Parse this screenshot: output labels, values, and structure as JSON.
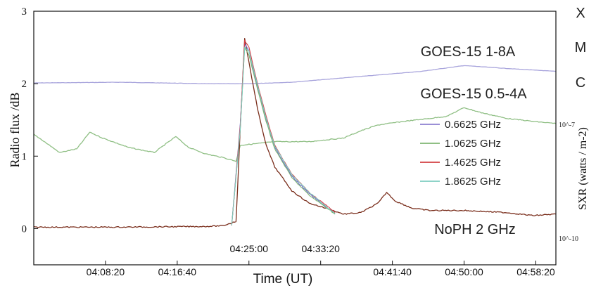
{
  "chart_data": {
    "type": "line",
    "xlabel": "Time (UT)",
    "ylabel": "Radio flux /dB",
    "y2label": "SXR (watts / m-2)",
    "xlim": [
      "04:00:00",
      "05:00:40"
    ],
    "ylim": [
      -0.5,
      3
    ],
    "y_ticks": [
      "0",
      "1",
      "2",
      "3"
    ],
    "x_ticks_bottom": [
      "04:08:20",
      "04:16:40",
      "04:41:40",
      "04:50:00",
      "04:58:20"
    ],
    "x_ticks_inner": [
      "04:25:00",
      "04:33:20"
    ],
    "y2_ticks": [
      "10^-7",
      "10^-10"
    ],
    "flare_classes": [
      "X",
      "M",
      "C"
    ],
    "grid": false,
    "legend_position": "right",
    "legend": [
      {
        "name": "0.6625 GHz",
        "color": "#9b8fd6"
      },
      {
        "name": "1.0625 GHz",
        "color": "#8fbf84"
      },
      {
        "name": "1.4625 GHz",
        "color": "#d8585a"
      },
      {
        "name": "1.8625 GHz",
        "color": "#8ed3c8"
      }
    ],
    "annotations": [
      "GOES-15 1-8A",
      "GOES-15 0.5-4A",
      "NoPH 2 GHz"
    ],
    "series": [
      {
        "name": "GOES-15 1-8A",
        "color": "#a8a4dc",
        "x": [
          "04:00:00",
          "04:10:00",
          "04:20:00",
          "04:25:00",
          "04:30:00",
          "04:35:00",
          "04:40:00",
          "04:45:00",
          "04:50:00",
          "04:55:00",
          "05:00:40"
        ],
        "values": [
          2.01,
          2.02,
          2.0,
          2.0,
          2.02,
          2.07,
          2.12,
          2.17,
          2.25,
          2.21,
          2.17
        ]
      },
      {
        "name": "GOES-15 0.5-4A",
        "color": "#8fbf84",
        "x": [
          "04:00:00",
          "04:01:00",
          "04:03:00",
          "04:05:00",
          "04:06:30",
          "04:08:00",
          "04:11:00",
          "04:14:00",
          "04:16:30",
          "04:18:00",
          "04:20:00",
          "04:22:00",
          "04:23:30",
          "04:24:00",
          "04:28:00",
          "04:32:00",
          "04:36:00",
          "04:38:00",
          "04:40:00",
          "04:43:00",
          "04:46:00",
          "04:48:00",
          "04:50:00",
          "04:52:00",
          "04:55:00",
          "04:58:00",
          "05:00:40"
        ],
        "values": [
          1.3,
          1.22,
          1.05,
          1.1,
          1.33,
          1.25,
          1.12,
          1.05,
          1.27,
          1.12,
          1.03,
          0.98,
          0.93,
          1.15,
          1.2,
          1.2,
          1.25,
          1.35,
          1.43,
          1.48,
          1.52,
          1.55,
          1.67,
          1.6,
          1.52,
          1.48,
          1.45
        ]
      },
      {
        "name": "NoPH 2 GHz",
        "color": "#7a2e1c",
        "x": [
          "04:00:00",
          "04:10:00",
          "04:20:00",
          "04:22:00",
          "04:23:30",
          "04:24:00",
          "04:24:30",
          "04:25:00",
          "04:26:00",
          "04:27:00",
          "04:28:00",
          "04:30:00",
          "04:32:00",
          "04:34:00",
          "04:36:00",
          "04:38:00",
          "04:40:00",
          "04:41:00",
          "04:42:00",
          "04:44:00",
          "04:46:00",
          "04:50:00",
          "04:55:00",
          "04:58:00",
          "05:00:40"
        ],
        "values": [
          0.02,
          0.02,
          0.03,
          0.04,
          0.1,
          1.4,
          2.62,
          2.3,
          1.65,
          1.15,
          0.85,
          0.52,
          0.35,
          0.28,
          0.2,
          0.22,
          0.35,
          0.5,
          0.38,
          0.28,
          0.25,
          0.25,
          0.22,
          0.18,
          0.2
        ]
      },
      {
        "name": "0.6625 GHz",
        "color": "#6f62c8",
        "x": [
          "04:23:00",
          "04:24:00",
          "04:24:30",
          "04:25:00",
          "04:26:00",
          "04:27:00",
          "04:28:00",
          "04:30:00",
          "04:32:00",
          "04:34:00",
          "04:35:00"
        ],
        "values": [
          0.05,
          1.45,
          2.55,
          2.45,
          1.95,
          1.5,
          1.12,
          0.72,
          0.48,
          0.3,
          0.2
        ]
      },
      {
        "name": "1.0625 GHz",
        "color": "#7fb774",
        "x": [
          "04:23:00",
          "04:24:00",
          "04:24:30",
          "04:25:00",
          "04:26:00",
          "04:27:00",
          "04:28:00",
          "04:30:00",
          "04:32:00",
          "04:34:00",
          "04:35:00"
        ],
        "values": [
          0.04,
          1.4,
          2.5,
          2.4,
          1.92,
          1.48,
          1.1,
          0.7,
          0.46,
          0.29,
          0.2
        ]
      },
      {
        "name": "1.4625 GHz",
        "color": "#d8404a",
        "x": [
          "04:23:00",
          "04:24:00",
          "04:24:30",
          "04:25:00",
          "04:26:00",
          "04:27:00",
          "04:28:00",
          "04:30:00",
          "04:32:00",
          "04:34:00",
          "04:35:00"
        ],
        "values": [
          0.04,
          1.42,
          2.6,
          2.5,
          2.0,
          1.55,
          1.15,
          0.75,
          0.5,
          0.32,
          0.22
        ]
      },
      {
        "name": "1.8625 GHz",
        "color": "#7ccdbf",
        "x": [
          "04:23:00",
          "04:24:00",
          "04:24:30",
          "04:25:00",
          "04:26:00",
          "04:27:00",
          "04:28:00",
          "04:30:00",
          "04:32:00",
          "04:34:00",
          "04:35:00"
        ],
        "values": [
          0.04,
          1.38,
          2.5,
          2.45,
          1.98,
          1.52,
          1.14,
          0.74,
          0.5,
          0.3,
          0.21
        ]
      }
    ]
  }
}
